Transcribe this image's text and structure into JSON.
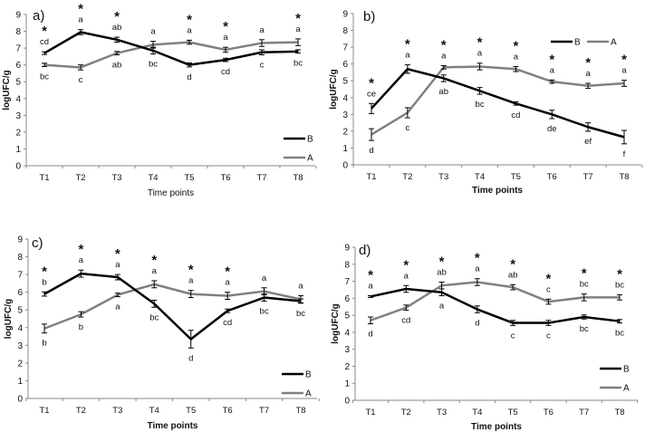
{
  "chart_data": [
    {
      "type": "line",
      "title": "a)",
      "xlabel": "Time points",
      "ylabel": "logUFC/g",
      "ylim": [
        0,
        9
      ],
      "categories": [
        "T1",
        "T2",
        "T3",
        "T4",
        "T5",
        "T6",
        "T7",
        "T8"
      ],
      "legend_placement": "bottom-right",
      "series": [
        {
          "name": "B",
          "color": "#000000",
          "values": [
            6.7,
            7.95,
            7.5,
            6.85,
            6.0,
            6.3,
            6.75,
            6.8
          ],
          "errors": [
            0.08,
            0.15,
            0.15,
            0.2,
            0.12,
            0.1,
            0.15,
            0.1
          ]
        },
        {
          "name": "A",
          "color": "#808080",
          "values": [
            6.0,
            5.85,
            6.7,
            7.2,
            7.35,
            6.9,
            7.3,
            7.35
          ],
          "errors": [
            0.1,
            0.15,
            0.1,
            0.2,
            0.12,
            0.15,
            0.2,
            0.2
          ]
        }
      ],
      "upper_letters": [
        "cd",
        "a",
        "ab",
        "a",
        "a",
        "a",
        "a",
        "a"
      ],
      "lower_letters": [
        "bc",
        "c",
        "ab",
        "bc",
        "d",
        "cd",
        "c",
        "bc"
      ],
      "significant": [
        true,
        true,
        true,
        false,
        true,
        true,
        false,
        true
      ],
      "significance_marker": "*"
    },
    {
      "type": "line",
      "title": "b)",
      "xlabel": "Time points",
      "ylabel": "logUFC/g",
      "ylim": [
        0,
        9
      ],
      "categories": [
        "T1",
        "T2",
        "T3",
        "T4",
        "T5",
        "T6",
        "T7",
        "T8"
      ],
      "legend_placement": "top-right",
      "series": [
        {
          "name": "B",
          "color": "#000000",
          "values": [
            3.35,
            5.7,
            5.15,
            4.4,
            3.65,
            3.0,
            2.25,
            1.65
          ],
          "errors": [
            0.3,
            0.25,
            0.2,
            0.2,
            0.1,
            0.25,
            0.25,
            0.4
          ]
        },
        {
          "name": "A",
          "color": "#808080",
          "values": [
            1.8,
            3.1,
            5.8,
            5.85,
            5.7,
            4.95,
            4.7,
            4.85
          ],
          "errors": [
            0.35,
            0.3,
            0.1,
            0.2,
            0.15,
            0.1,
            0.15,
            0.18
          ]
        }
      ],
      "upper_letters": [
        "ce",
        "a",
        "a",
        "a",
        "a",
        "a",
        "a",
        "a"
      ],
      "lower_letters": [
        "d",
        "c",
        "ab",
        "bc",
        "cd",
        "de",
        "ef",
        "f"
      ],
      "significant": [
        true,
        true,
        true,
        true,
        true,
        true,
        true,
        true
      ],
      "significance_marker": "*"
    },
    {
      "type": "line",
      "title": "c)",
      "xlabel": "Time points",
      "ylabel": "logUFC/g",
      "ylim": [
        0,
        9
      ],
      "categories": [
        "T1",
        "T2",
        "T3",
        "T4",
        "T5",
        "T6",
        "T7",
        "T8"
      ],
      "legend_placement": "bottom-right",
      "series": [
        {
          "name": "B",
          "color": "#000000",
          "values": [
            5.9,
            7.05,
            6.85,
            5.35,
            3.35,
            4.95,
            5.7,
            5.5
          ],
          "errors": [
            0.12,
            0.2,
            0.15,
            0.2,
            0.5,
            0.1,
            0.2,
            0.12
          ]
        },
        {
          "name": "A",
          "color": "#808080",
          "values": [
            3.95,
            4.75,
            5.85,
            6.45,
            5.9,
            5.8,
            6.05,
            5.6
          ],
          "errors": [
            0.25,
            0.15,
            0.1,
            0.2,
            0.2,
            0.2,
            0.2,
            0.2
          ]
        }
      ],
      "upper_letters": [
        "b",
        "a",
        "a",
        "a",
        "a",
        "a",
        "a",
        "a"
      ],
      "lower_letters": [
        "b",
        "b",
        "a",
        "bc",
        "d",
        "cd",
        "bc",
        "bc"
      ],
      "significant": [
        true,
        true,
        true,
        true,
        true,
        true,
        false,
        false
      ],
      "significance_marker": "*"
    },
    {
      "type": "line",
      "title": "d)",
      "xlabel": "Time points",
      "ylabel": "logUFC/g",
      "ylim": [
        0,
        9
      ],
      "categories": [
        "T1",
        "T2",
        "T3",
        "T4",
        "T5",
        "T6",
        "T7",
        "T8"
      ],
      "legend_placement": "bottom-right",
      "series": [
        {
          "name": "B",
          "color": "#000000",
          "values": [
            6.1,
            6.55,
            6.35,
            5.35,
            4.55,
            4.55,
            4.9,
            4.65
          ],
          "errors": [
            0.05,
            0.2,
            0.2,
            0.2,
            0.15,
            0.15,
            0.12,
            0.1
          ]
        },
        {
          "name": "A",
          "color": "#808080",
          "values": [
            4.7,
            5.45,
            6.75,
            6.95,
            6.65,
            5.8,
            6.05,
            6.05
          ],
          "errors": [
            0.2,
            0.15,
            0.2,
            0.2,
            0.15,
            0.15,
            0.2,
            0.15
          ]
        }
      ],
      "upper_letters": [
        "a",
        "a",
        "ab",
        "a",
        "ab",
        "c",
        "bc",
        "bc"
      ],
      "lower_letters": [
        "d",
        "cd",
        "a",
        "d",
        "c",
        "c",
        "bc",
        "bc"
      ],
      "significant": [
        true,
        true,
        true,
        true,
        true,
        true,
        true,
        true
      ],
      "significance_marker": "*"
    }
  ]
}
